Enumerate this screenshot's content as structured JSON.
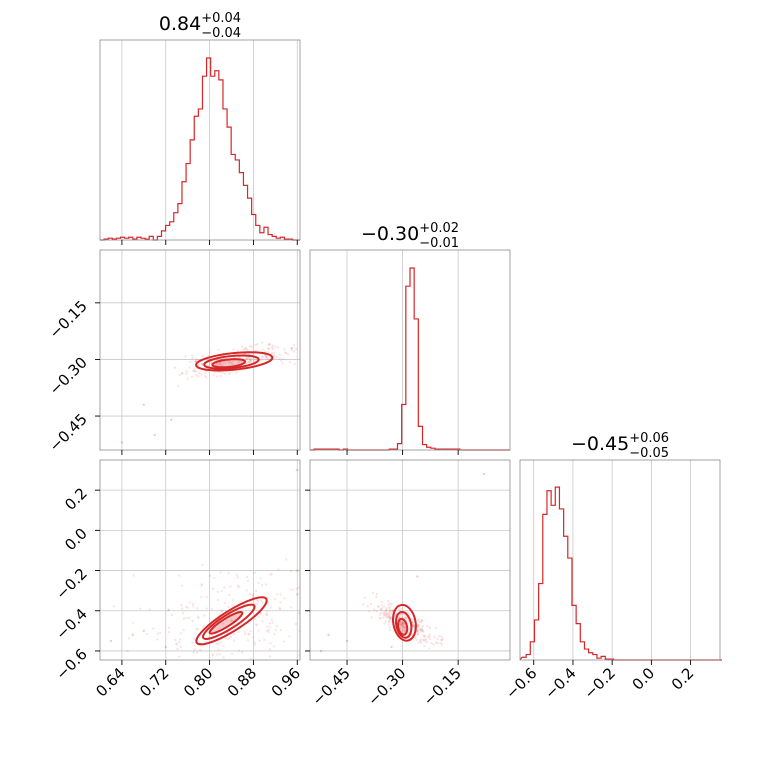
{
  "chart_data": {
    "type": "corner",
    "color": "#d62728",
    "grid": true,
    "parameters": [
      {
        "title": "0.84",
        "err_plus": "+0.04",
        "err_minus": "−0.04",
        "range": [
          0.6,
          0.965
        ],
        "ticks": [
          0.64,
          0.72,
          0.8,
          0.88,
          0.96
        ],
        "tick_labels": [
          "0.64",
          "0.72",
          "0.80",
          "0.88",
          "0.96"
        ],
        "histogram": {
          "bin_start": 0.6,
          "bin_width": 0.00748,
          "counts": [
            0,
            0.005,
            0.01,
            0.005,
            0.01,
            0.015,
            0.01,
            0.015,
            0.005,
            0.015,
            0.01,
            0.005,
            0.02,
            0,
            0.02,
            0.05,
            0.08,
            0.1,
            0.15,
            0.2,
            0.32,
            0.42,
            0.55,
            0.68,
            0.72,
            0.9,
            1.0,
            0.9,
            0.93,
            0.88,
            0.72,
            0.62,
            0.47,
            0.44,
            0.37,
            0.3,
            0.23,
            0.14,
            0.08,
            0.04,
            0.07,
            0.03,
            0.02,
            0.01,
            0.015,
            0.005,
            0.005,
            0
          ]
        }
      },
      {
        "title": "−0.30",
        "err_plus": "+0.02",
        "err_minus": "−0.01",
        "range": [
          -0.55,
          -0.01
        ],
        "ticks": [
          -0.45,
          -0.3,
          -0.15
        ],
        "tick_labels": [
          "−0.45",
          "−0.30",
          "−0.15"
        ],
        "histogram": {
          "bin_start": -0.55,
          "bin_width": 0.01125,
          "counts": [
            0,
            0.005,
            0.005,
            0.005,
            0.005,
            0.005,
            0.005,
            0,
            0.005,
            0,
            0,
            0,
            0,
            0,
            0,
            0,
            0,
            0,
            0,
            0.005,
            0.005,
            0.035,
            0.25,
            0.9,
            1.0,
            0.72,
            0.13,
            0.03,
            0.015,
            0.01,
            0.005,
            0.005,
            0.005,
            0.005,
            0.005,
            0.005,
            0,
            0,
            0,
            0,
            0,
            0,
            0,
            0,
            0,
            0,
            0,
            0
          ]
        }
      },
      {
        "title": "−0.45",
        "err_plus": "+0.06",
        "err_minus": "−0.05",
        "range": [
          -0.67,
          0.35
        ],
        "ticks": [
          -0.6,
          -0.4,
          -0.2,
          0.0,
          0.2
        ],
        "tick_labels": [
          "−0.6",
          "−0.4",
          "−0.2",
          "0.0",
          "0.2"
        ],
        "left_tick_labels": [
          "−0.6",
          "−0.4",
          "−0.2",
          "0.0",
          "0.2"
        ],
        "left_range": [
          -0.645,
          0.35
        ],
        "histogram": {
          "bin_start": -0.66,
          "bin_width": 0.02125,
          "counts": [
            0.015,
            0.03,
            0.1,
            0.22,
            0.42,
            0.8,
            0.93,
            0.85,
            0.95,
            0.83,
            0.68,
            0.56,
            0.3,
            0.2,
            0.1,
            0.06,
            0.04,
            0.03,
            0.01,
            0.02,
            0.005,
            0.005,
            0,
            0,
            0,
            0,
            0,
            0,
            0,
            0,
            0,
            0,
            0,
            0,
            0,
            0,
            0,
            0,
            0,
            0,
            0,
            0,
            0,
            0,
            0,
            0,
            0,
            0
          ]
        }
      }
    ],
    "row_label_ticks": {
      "param2": [
        "−0.15",
        "−0.30",
        "−0.45"
      ]
    },
    "contours": [
      {
        "x_param": 0,
        "y_param": 1,
        "points": [
          [
            0.775,
            -0.305
          ],
          [
            0.95,
            -0.27
          ],
          [
            0.965,
            -0.255
          ],
          [
            0.6,
            -0.49
          ],
          [
            0.64,
            -0.52
          ],
          [
            0.68,
            -0.42
          ],
          [
            0.7,
            -0.5
          ],
          [
            0.73,
            -0.46
          ]
        ],
        "levels": [
          {
            "center": [
              0.845,
              -0.305
            ],
            "rx": 0.07,
            "ry": 0.022,
            "tilt": 0.18
          },
          {
            "center": [
              0.84,
              -0.307
            ],
            "rx": 0.05,
            "ry": 0.016,
            "tilt": 0.18
          },
          {
            "center": [
              0.835,
              -0.31
            ],
            "rx": 0.03,
            "ry": 0.01,
            "tilt": 0.18
          }
        ]
      },
      {
        "x_param": 0,
        "y_param": 2,
        "points": [
          [
            0.72,
            -0.58
          ],
          [
            0.96,
            -0.2
          ],
          [
            0.66,
            -0.52
          ],
          [
            0.62,
            -0.55
          ],
          [
            0.68,
            -0.5
          ],
          [
            0.96,
            0.3
          ]
        ],
        "levels": [
          {
            "center": [
              0.84,
              -0.45
            ],
            "rx": 0.075,
            "ry": 0.05,
            "tilt": 1.25
          },
          {
            "center": [
              0.835,
              -0.455
            ],
            "rx": 0.055,
            "ry": 0.035,
            "tilt": 1.25
          },
          {
            "center": [
              0.83,
              -0.46
            ],
            "rx": 0.035,
            "ry": 0.02,
            "tilt": 1.25
          }
        ]
      },
      {
        "x_param": 1,
        "y_param": 2,
        "points": [
          [
            -0.33,
            -0.58
          ],
          [
            -0.26,
            -0.23
          ],
          [
            -0.5,
            -0.52
          ],
          [
            -0.45,
            -0.55
          ],
          [
            -0.08,
            0.28
          ],
          [
            -0.52,
            -0.6
          ]
        ],
        "levels": [
          {
            "center": [
              -0.295,
              -0.46
            ],
            "rx": 0.03,
            "ry": 0.09,
            "tilt": 0.35
          },
          {
            "center": [
              -0.297,
              -0.47
            ],
            "rx": 0.02,
            "ry": 0.065,
            "tilt": 0.35
          },
          {
            "center": [
              -0.3,
              -0.48
            ],
            "rx": 0.012,
            "ry": 0.04,
            "tilt": 0.35
          }
        ]
      }
    ]
  }
}
